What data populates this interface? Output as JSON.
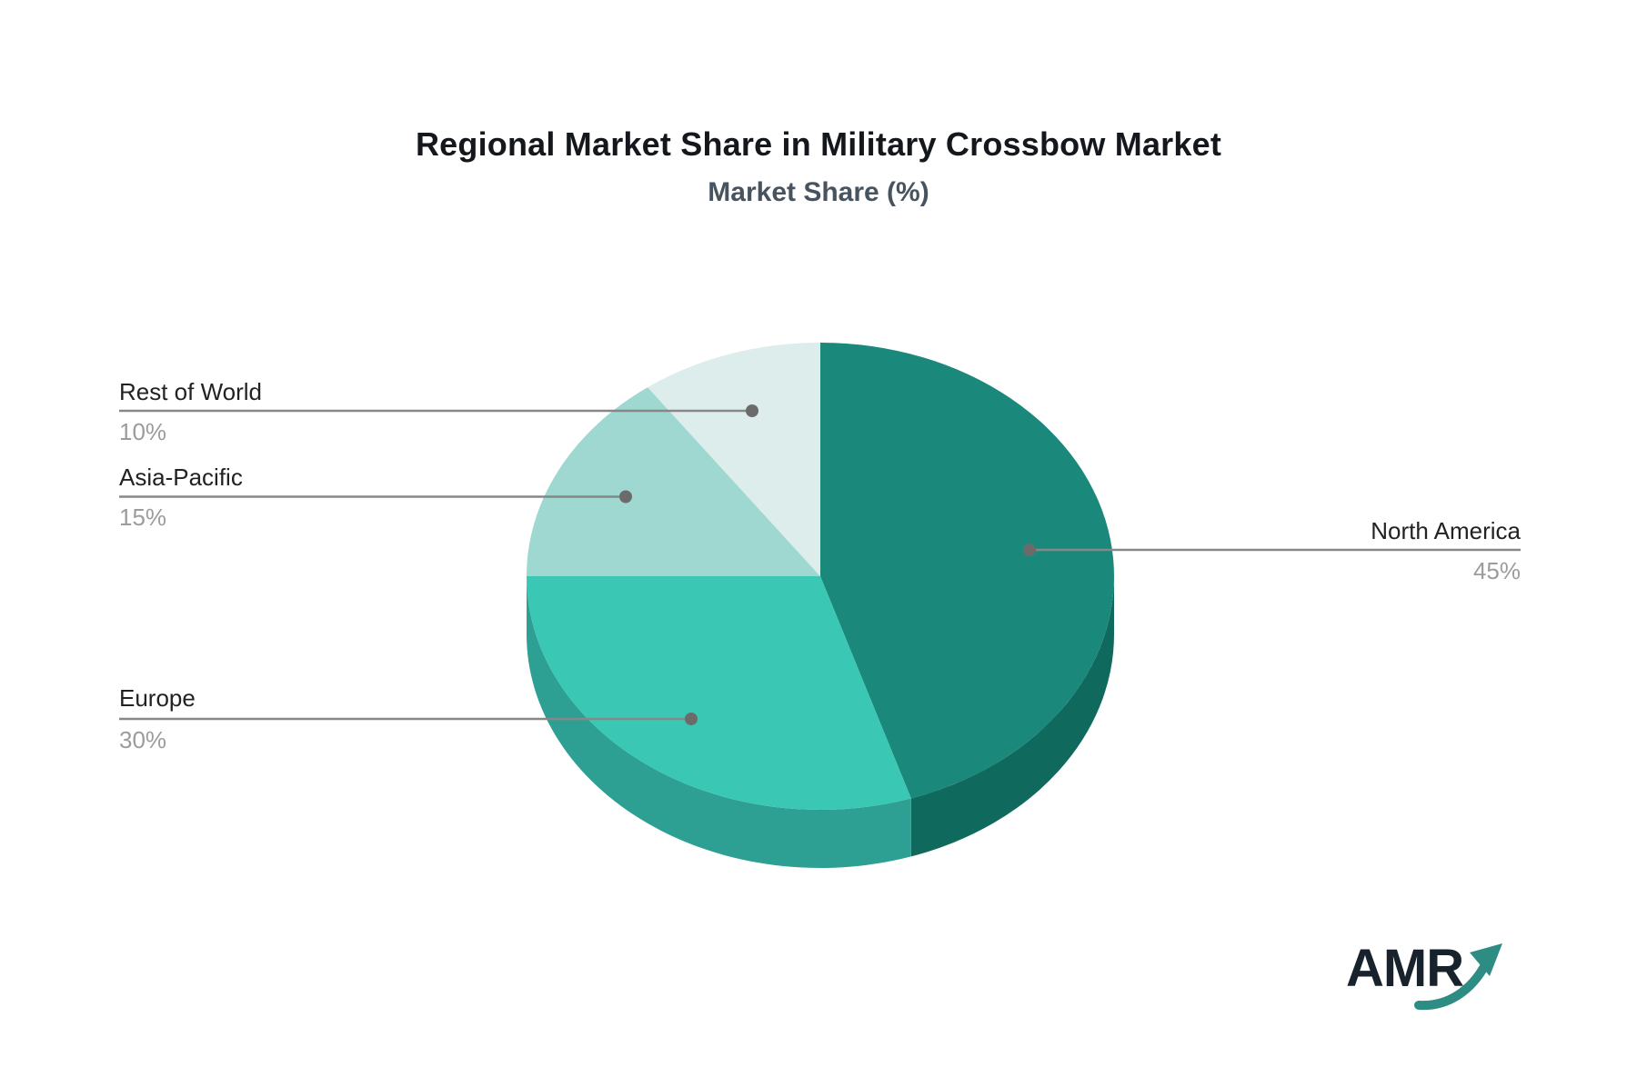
{
  "header": {
    "title": "Regional Market Share in Military Crossbow Market",
    "subtitle": "Market Share (%)"
  },
  "chart_data": {
    "type": "pie",
    "title": "Regional Market Share in Military Crossbow Market",
    "subtitle": "Market Share (%)",
    "unit": "%",
    "start_angle_deg": 0,
    "direction": "clockwise",
    "style": "3d",
    "legend_position": "none",
    "slices": [
      {
        "label": "North America",
        "value": 45,
        "color": "#1a897b",
        "side_color": "#0f695d"
      },
      {
        "label": "Europe",
        "value": 30,
        "color": "#3ac8b5",
        "side_color": "#2e9f93"
      },
      {
        "label": "Asia-Pacific",
        "value": 15,
        "color": "#9fd8d1",
        "side_color": "#7fbcb4"
      },
      {
        "label": "Rest of World",
        "value": 10,
        "color": "#dcedeb",
        "side_color": "#b9cfcc"
      }
    ]
  },
  "labels": {
    "rest_of_world": {
      "name": "Rest of World",
      "percent": "10%"
    },
    "asia_pacific": {
      "name": "Asia-Pacific",
      "percent": "15%"
    },
    "europe": {
      "name": "Europe",
      "percent": "30%"
    },
    "north_america": {
      "name": "North America",
      "percent": "45%"
    }
  },
  "logo": {
    "text": "AMR"
  },
  "colors": {
    "leader_line": "#878787",
    "dot": "#6b6b6b",
    "title_text": "#14181d",
    "subtitle_text": "#47545f",
    "label_text": "#222222",
    "percent_text": "#9c9c9c",
    "logo_text": "#17222c",
    "logo_arrow": "#2d8c84"
  }
}
